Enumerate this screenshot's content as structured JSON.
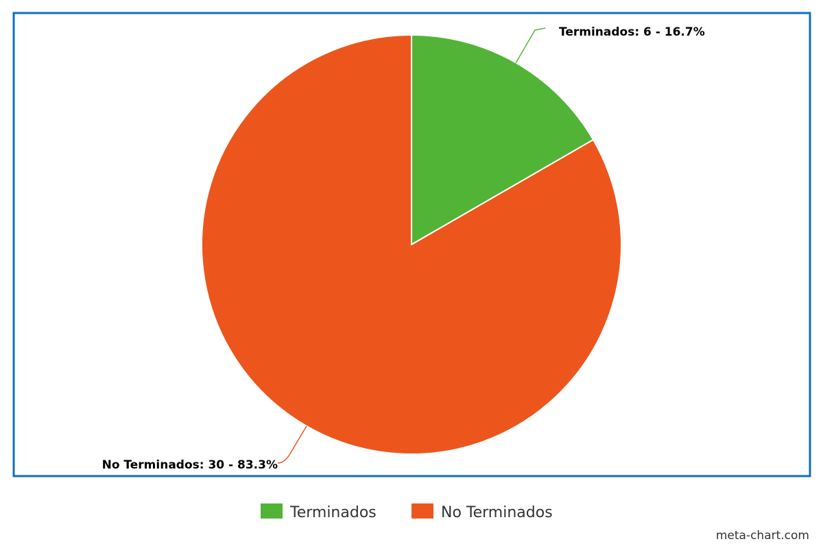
{
  "chart_data": {
    "type": "pie",
    "title": "",
    "slices": [
      {
        "name": "Terminados",
        "value": 6,
        "percent": 16.7,
        "label": "Terminados: 6 - 16.7%",
        "color": "#52b436"
      },
      {
        "name": "No Terminados",
        "value": 30,
        "percent": 83.3,
        "label": "No Terminados: 30 - 83.3%",
        "color": "#ec561d"
      }
    ],
    "start_angle_deg": 0,
    "direction": "clockwise",
    "legend": {
      "placement": "bottom-center",
      "entries": [
        "Terminados",
        "No Terminados"
      ]
    },
    "frame_color": "#0f6fbc"
  },
  "credit": "meta-chart.com"
}
